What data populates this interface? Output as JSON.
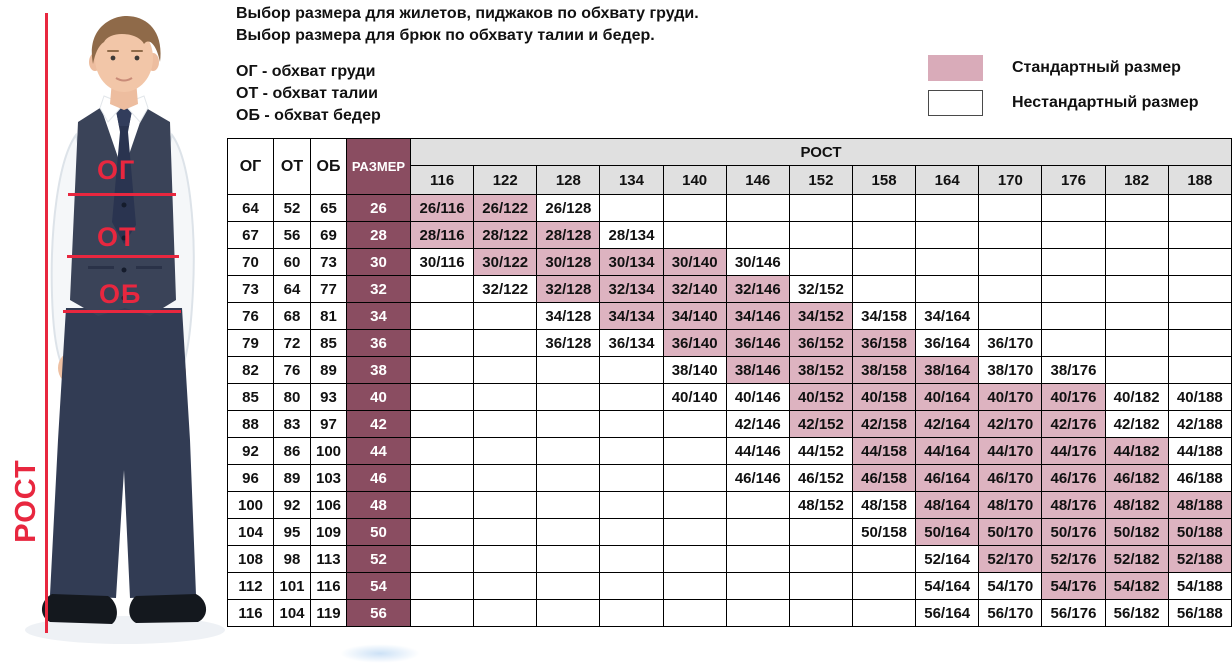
{
  "intro": {
    "line1": "Выбор размера для жилетов, пиджаков по обхвату груди.",
    "line2": "Выбор размера для брюк по обхвату талии и бедер."
  },
  "abbreviations": [
    "ОГ - обхват груди",
    "ОТ - обхват талии",
    "ОБ - обхват бедер"
  ],
  "legend": {
    "standard": {
      "label": "Стандартный размер",
      "color": "#d9abb9"
    },
    "nonstandard": {
      "label": "Нестандартный размер",
      "color": "#ffffff"
    }
  },
  "figure": {
    "height_label": "РОСТ",
    "chest_label": "ОГ",
    "waist_label": "ОТ",
    "hips_label": "ОБ",
    "annotation_color": "#e8273f"
  },
  "chart_data": {
    "type": "table",
    "columns": [
      "ОГ",
      "ОТ",
      "ОБ",
      "РАЗМЕР"
    ],
    "rost_header": "РОСТ",
    "heights": [
      "116",
      "122",
      "128",
      "134",
      "140",
      "146",
      "152",
      "158",
      "164",
      "170",
      "176",
      "182",
      "188"
    ],
    "colors": {
      "size_col": "#8a4d61",
      "standard_cell": "#ddb3c0",
      "header_bg": "#e0e0e0"
    },
    "rows": [
      {
        "og": "64",
        "ot": "52",
        "ob": "65",
        "size": "26",
        "cells": [
          {
            "t": "26/116",
            "std": true
          },
          {
            "t": "26/122",
            "std": true
          },
          {
            "t": "26/128",
            "std": false
          },
          null,
          null,
          null,
          null,
          null,
          null,
          null,
          null,
          null,
          null
        ]
      },
      {
        "og": "67",
        "ot": "56",
        "ob": "69",
        "size": "28",
        "cells": [
          {
            "t": "28/116",
            "std": true
          },
          {
            "t": "28/122",
            "std": true
          },
          {
            "t": "28/128",
            "std": true
          },
          {
            "t": "28/134",
            "std": false
          },
          null,
          null,
          null,
          null,
          null,
          null,
          null,
          null,
          null
        ]
      },
      {
        "og": "70",
        "ot": "60",
        "ob": "73",
        "size": "30",
        "cells": [
          {
            "t": "30/116",
            "std": false
          },
          {
            "t": "30/122",
            "std": true
          },
          {
            "t": "30/128",
            "std": true
          },
          {
            "t": "30/134",
            "std": true
          },
          {
            "t": "30/140",
            "std": true
          },
          {
            "t": "30/146",
            "std": false
          },
          null,
          null,
          null,
          null,
          null,
          null,
          null
        ]
      },
      {
        "og": "73",
        "ot": "64",
        "ob": "77",
        "size": "32",
        "cells": [
          null,
          {
            "t": "32/122",
            "std": false
          },
          {
            "t": "32/128",
            "std": true
          },
          {
            "t": "32/134",
            "std": true
          },
          {
            "t": "32/140",
            "std": true
          },
          {
            "t": "32/146",
            "std": true
          },
          {
            "t": "32/152",
            "std": false
          },
          null,
          null,
          null,
          null,
          null,
          null
        ]
      },
      {
        "og": "76",
        "ot": "68",
        "ob": "81",
        "size": "34",
        "cells": [
          null,
          null,
          {
            "t": "34/128",
            "std": false
          },
          {
            "t": "34/134",
            "std": true
          },
          {
            "t": "34/140",
            "std": true
          },
          {
            "t": "34/146",
            "std": true
          },
          {
            "t": "34/152",
            "std": true
          },
          {
            "t": "34/158",
            "std": false
          },
          {
            "t": "34/164",
            "std": false
          },
          null,
          null,
          null,
          null
        ]
      },
      {
        "og": "79",
        "ot": "72",
        "ob": "85",
        "size": "36",
        "cells": [
          null,
          null,
          {
            "t": "36/128",
            "std": false
          },
          {
            "t": "36/134",
            "std": false
          },
          {
            "t": "36/140",
            "std": true
          },
          {
            "t": "36/146",
            "std": true
          },
          {
            "t": "36/152",
            "std": true
          },
          {
            "t": "36/158",
            "std": true
          },
          {
            "t": "36/164",
            "std": false
          },
          {
            "t": "36/170",
            "std": false
          },
          null,
          null,
          null
        ]
      },
      {
        "og": "82",
        "ot": "76",
        "ob": "89",
        "size": "38",
        "cells": [
          null,
          null,
          null,
          null,
          {
            "t": "38/140",
            "std": false
          },
          {
            "t": "38/146",
            "std": true
          },
          {
            "t": "38/152",
            "std": true
          },
          {
            "t": "38/158",
            "std": true
          },
          {
            "t": "38/164",
            "std": true
          },
          {
            "t": "38/170",
            "std": false
          },
          {
            "t": "38/176",
            "std": false
          },
          null,
          null
        ]
      },
      {
        "og": "85",
        "ot": "80",
        "ob": "93",
        "size": "40",
        "cells": [
          null,
          null,
          null,
          null,
          {
            "t": "40/140",
            "std": false
          },
          {
            "t": "40/146",
            "std": false
          },
          {
            "t": "40/152",
            "std": true
          },
          {
            "t": "40/158",
            "std": true
          },
          {
            "t": "40/164",
            "std": true
          },
          {
            "t": "40/170",
            "std": true
          },
          {
            "t": "40/176",
            "std": true
          },
          {
            "t": "40/182",
            "std": false
          },
          {
            "t": "40/188",
            "std": false
          }
        ]
      },
      {
        "og": "88",
        "ot": "83",
        "ob": "97",
        "size": "42",
        "cells": [
          null,
          null,
          null,
          null,
          null,
          {
            "t": "42/146",
            "std": false
          },
          {
            "t": "42/152",
            "std": true
          },
          {
            "t": "42/158",
            "std": true
          },
          {
            "t": "42/164",
            "std": true
          },
          {
            "t": "42/170",
            "std": true
          },
          {
            "t": "42/176",
            "std": true
          },
          {
            "t": "42/182",
            "std": false
          },
          {
            "t": "42/188",
            "std": false
          }
        ]
      },
      {
        "og": "92",
        "ot": "86",
        "ob": "100",
        "size": "44",
        "cells": [
          null,
          null,
          null,
          null,
          null,
          {
            "t": "44/146",
            "std": false
          },
          {
            "t": "44/152",
            "std": false
          },
          {
            "t": "44/158",
            "std": true
          },
          {
            "t": "44/164",
            "std": true
          },
          {
            "t": "44/170",
            "std": true
          },
          {
            "t": "44/176",
            "std": true
          },
          {
            "t": "44/182",
            "std": true
          },
          {
            "t": "44/188",
            "std": false
          }
        ]
      },
      {
        "og": "96",
        "ot": "89",
        "ob": "103",
        "size": "46",
        "cells": [
          null,
          null,
          null,
          null,
          null,
          {
            "t": "46/146",
            "std": false
          },
          {
            "t": "46/152",
            "std": false
          },
          {
            "t": "46/158",
            "std": true
          },
          {
            "t": "46/164",
            "std": true
          },
          {
            "t": "46/170",
            "std": true
          },
          {
            "t": "46/176",
            "std": true
          },
          {
            "t": "46/182",
            "std": true
          },
          {
            "t": "46/188",
            "std": false
          }
        ]
      },
      {
        "og": "100",
        "ot": "92",
        "ob": "106",
        "size": "48",
        "cells": [
          null,
          null,
          null,
          null,
          null,
          null,
          {
            "t": "48/152",
            "std": false
          },
          {
            "t": "48/158",
            "std": false
          },
          {
            "t": "48/164",
            "std": true
          },
          {
            "t": "48/170",
            "std": true
          },
          {
            "t": "48/176",
            "std": true
          },
          {
            "t": "48/182",
            "std": true
          },
          {
            "t": "48/188",
            "std": true
          }
        ]
      },
      {
        "og": "104",
        "ot": "95",
        "ob": "109",
        "size": "50",
        "cells": [
          null,
          null,
          null,
          null,
          null,
          null,
          null,
          {
            "t": "50/158",
            "std": false
          },
          {
            "t": "50/164",
            "std": true
          },
          {
            "t": "50/170",
            "std": true
          },
          {
            "t": "50/176",
            "std": true
          },
          {
            "t": "50/182",
            "std": true
          },
          {
            "t": "50/188",
            "std": true
          }
        ]
      },
      {
        "og": "108",
        "ot": "98",
        "ob": "113",
        "size": "52",
        "cells": [
          null,
          null,
          null,
          null,
          null,
          null,
          null,
          null,
          {
            "t": "52/164",
            "std": false
          },
          {
            "t": "52/170",
            "std": true
          },
          {
            "t": "52/176",
            "std": true
          },
          {
            "t": "52/182",
            "std": true
          },
          {
            "t": "52/188",
            "std": true
          }
        ]
      },
      {
        "og": "112",
        "ot": "101",
        "ob": "116",
        "size": "54",
        "cells": [
          null,
          null,
          null,
          null,
          null,
          null,
          null,
          null,
          {
            "t": "54/164",
            "std": false
          },
          {
            "t": "54/170",
            "std": false
          },
          {
            "t": "54/176",
            "std": true
          },
          {
            "t": "54/182",
            "std": true
          },
          {
            "t": "54/188",
            "std": false
          }
        ]
      },
      {
        "og": "116",
        "ot": "104",
        "ob": "119",
        "size": "56",
        "cells": [
          null,
          null,
          null,
          null,
          null,
          null,
          null,
          null,
          {
            "t": "56/164",
            "std": false
          },
          {
            "t": "56/170",
            "std": false
          },
          {
            "t": "56/176",
            "std": false
          },
          {
            "t": "56/182",
            "std": false
          },
          {
            "t": "56/188",
            "std": false
          }
        ]
      }
    ]
  }
}
